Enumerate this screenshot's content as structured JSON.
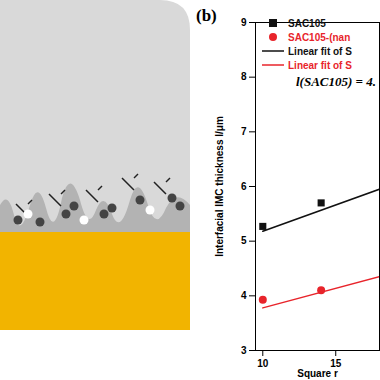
{
  "chart_data": {
    "type": "scatter",
    "panel_label": "(b)",
    "x_label": "Square r",
    "y_label": "Interfacial IMC thickness l/μm",
    "xlim": [
      9.5,
      18
    ],
    "xticks": [
      10,
      15
    ],
    "ylim": [
      3,
      9
    ],
    "yticks": [
      3,
      4,
      5,
      6,
      7,
      8,
      9
    ],
    "grid": false,
    "legend": "upper right",
    "annotation": "l(SAC105) = 4.",
    "series": [
      {
        "name": "SAC105",
        "type": "scatter",
        "marker": "square",
        "color": "#111111",
        "x": [
          10,
          14
        ],
        "values": [
          5.27,
          5.7
        ]
      },
      {
        "name": "SAC105-(nan",
        "type": "scatter",
        "marker": "circle",
        "color": "#e8242b",
        "x": [
          10,
          14
        ],
        "values": [
          3.93,
          4.1
        ]
      },
      {
        "name": "Linear fit of S",
        "type": "line",
        "line_style": "solid",
        "color": "#111111",
        "x": [
          10,
          18
        ],
        "values": [
          5.18,
          5.95
        ]
      },
      {
        "name": "Linear fit of S",
        "type": "line",
        "line_style": "solid",
        "color": "#e8242b",
        "x": [
          10,
          18
        ],
        "values": [
          3.78,
          4.35
        ]
      }
    ]
  }
}
